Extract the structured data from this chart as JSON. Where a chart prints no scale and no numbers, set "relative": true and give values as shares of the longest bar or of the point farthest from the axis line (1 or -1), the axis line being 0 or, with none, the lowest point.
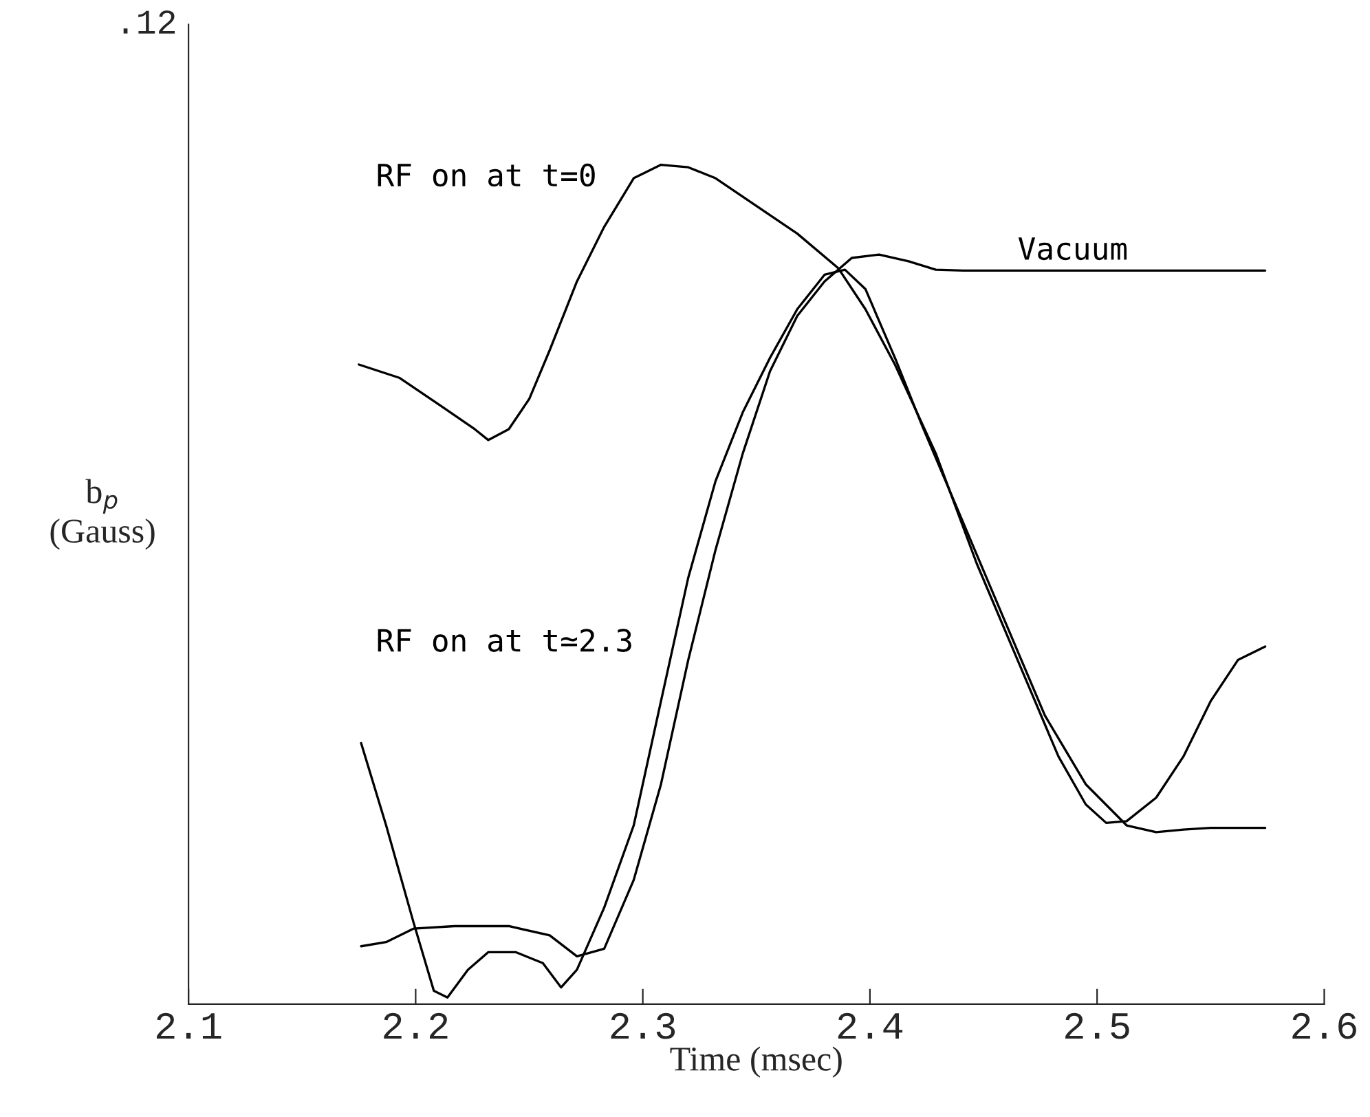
{
  "chart_data": {
    "type": "line",
    "relative": true,
    "xlabel": "Time (msec)",
    "ylabel": "b$_{p}$\n(Gauss)",
    "annotations": [
      ".12"
    ],
    "xlim": [
      2.1,
      2.6
    ],
    "xticks": [
      2.1,
      2.2,
      2.3,
      2.4,
      2.5,
      2.6
    ],
    "grid": false,
    "legend": false,
    "marker": "none",
    "line_style": "solid",
    "series": [
      {
        "name": "RF on at t=0",
        "color": "#000000",
        "x": [
          2.175,
          2.193,
          2.211,
          2.226,
          2.232,
          2.241,
          2.25,
          2.259,
          2.271,
          2.283,
          2.296,
          2.308,
          2.32,
          2.332,
          2.35,
          2.368,
          2.386,
          2.398,
          2.411,
          2.429,
          2.447,
          2.465,
          2.483,
          2.495,
          2.504,
          2.513,
          2.526,
          2.538,
          2.55,
          2.562,
          2.574
        ],
        "values": [
          0.762,
          0.746,
          0.713,
          0.685,
          0.672,
          0.685,
          0.721,
          0.779,
          0.861,
          0.926,
          0.984,
          1.0,
          0.997,
          0.984,
          0.951,
          0.918,
          0.877,
          0.828,
          0.762,
          0.656,
          0.525,
          0.41,
          0.295,
          0.238,
          0.216,
          0.218,
          0.246,
          0.295,
          0.361,
          0.41,
          0.426
        ]
      },
      {
        "name": "Vacuum",
        "color": "#000000",
        "x": [
          2.176,
          2.187,
          2.199,
          2.217,
          2.241,
          2.259,
          2.271,
          2.283,
          2.296,
          2.308,
          2.32,
          2.332,
          2.344,
          2.356,
          2.368,
          2.38,
          2.392,
          2.404,
          2.417,
          2.429,
          2.441,
          2.453,
          2.574
        ],
        "values": [
          0.069,
          0.074,
          0.09,
          0.093,
          0.093,
          0.082,
          0.057,
          0.066,
          0.148,
          0.262,
          0.41,
          0.541,
          0.656,
          0.754,
          0.82,
          0.861,
          0.889,
          0.893,
          0.885,
          0.875,
          0.874,
          0.874,
          0.874
        ]
      },
      {
        "name": "RF on at t≃2.3",
        "color": "#000000",
        "x": [
          2.176,
          2.187,
          2.199,
          2.208,
          2.214,
          2.223,
          2.232,
          2.244,
          2.256,
          2.264,
          2.271,
          2.283,
          2.296,
          2.308,
          2.32,
          2.332,
          2.344,
          2.356,
          2.368,
          2.38,
          2.389,
          2.398,
          2.411,
          2.423,
          2.441,
          2.459,
          2.477,
          2.495,
          2.513,
          2.526,
          2.538,
          2.55,
          2.574
        ],
        "values": [
          0.311,
          0.213,
          0.098,
          0.016,
          0.008,
          0.041,
          0.062,
          0.062,
          0.049,
          0.02,
          0.041,
          0.115,
          0.213,
          0.361,
          0.508,
          0.623,
          0.705,
          0.77,
          0.828,
          0.869,
          0.875,
          0.852,
          0.77,
          0.689,
          0.574,
          0.459,
          0.344,
          0.262,
          0.213,
          0.205,
          0.208,
          0.21,
          0.21
        ]
      }
    ]
  }
}
